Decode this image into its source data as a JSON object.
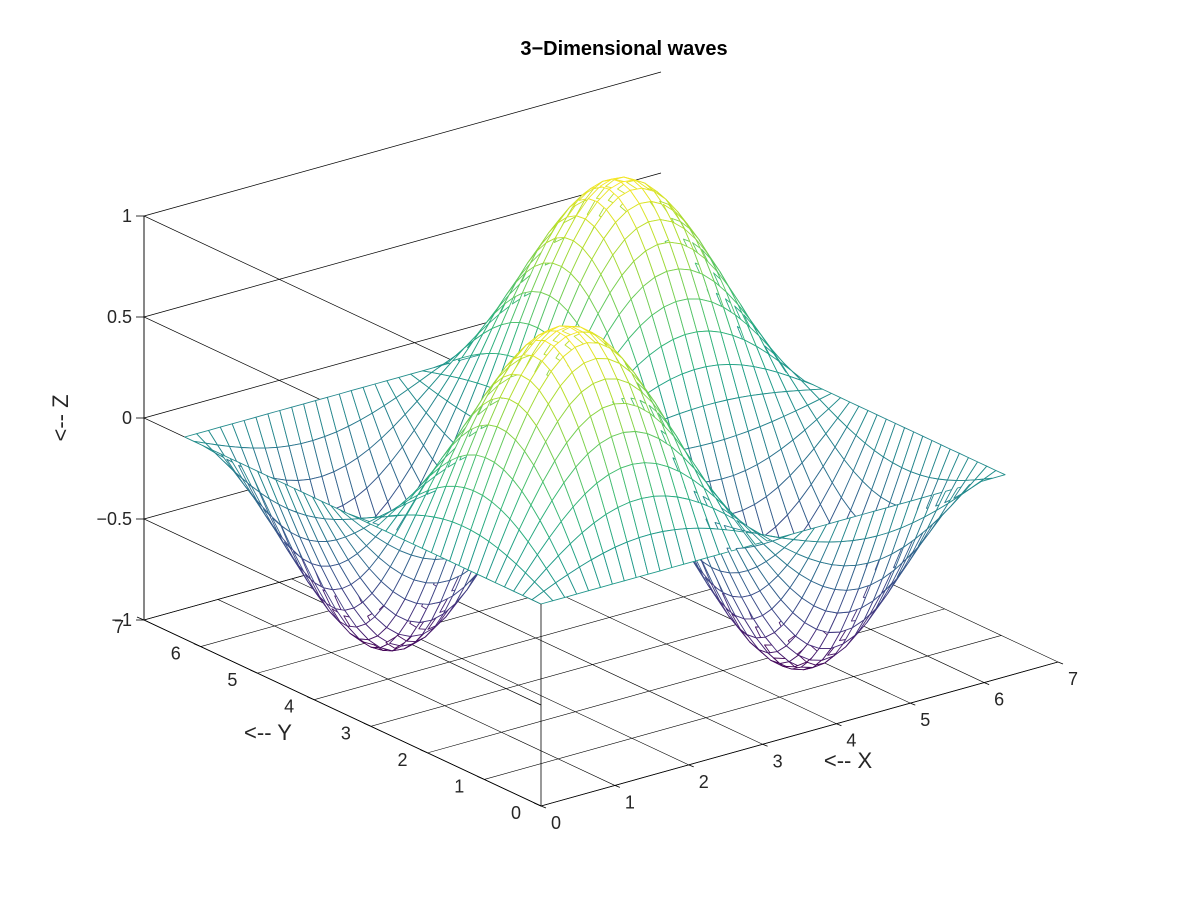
{
  "chart_data": {
    "type": "surface",
    "title": "3−Dimensional waves",
    "xlabel": "<-- X",
    "ylabel": "<-- Y",
    "zlabel": "<-- Z",
    "function": "z = sin(x) * sin(y)",
    "xlim": [
      0,
      7
    ],
    "ylim": [
      0,
      7
    ],
    "zlim": [
      -1,
      1
    ],
    "domain": [
      0,
      6.2832
    ],
    "grid_points": 40,
    "xticks": [
      "0",
      "1",
      "2",
      "3",
      "4",
      "5",
      "6",
      "7"
    ],
    "yticks": [
      "0",
      "1",
      "2",
      "3",
      "4",
      "5",
      "6",
      "7"
    ],
    "zticks": [
      "−1",
      "−0.5",
      "0",
      "0.5",
      "1"
    ],
    "colormap": "viridis",
    "grid": true
  }
}
